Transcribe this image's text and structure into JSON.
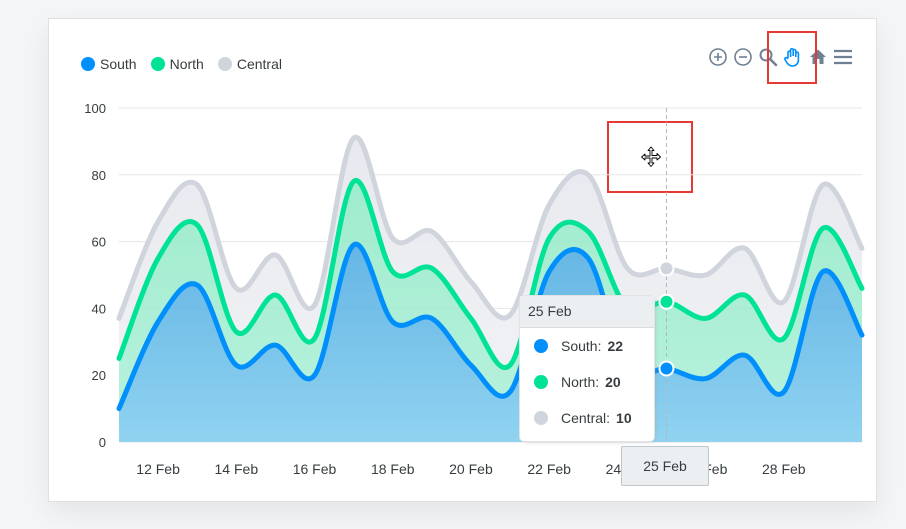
{
  "colors": {
    "south": "#008ffb",
    "north": "#00e396",
    "central": "#d0d4dc",
    "grid": "#e6e6e6",
    "axis_text": "#373d3f"
  },
  "legend": [
    {
      "name": "South",
      "color": "#008ffb"
    },
    {
      "name": "North",
      "color": "#00e396"
    },
    {
      "name": "Central",
      "color": "#d0d4dc"
    }
  ],
  "toolbar": {
    "icons": [
      "zoom-in-icon",
      "zoom-out-icon",
      "zoom-select-icon",
      "pan-hand-icon",
      "reset-home-icon",
      "menu-icon"
    ]
  },
  "chart_data": {
    "type": "area",
    "stacked": true,
    "x": [
      "11 Feb",
      "12 Feb",
      "13 Feb",
      "14 Feb",
      "15 Feb",
      "16 Feb",
      "17 Feb",
      "18 Feb",
      "19 Feb",
      "20 Feb",
      "21 Feb",
      "22 Feb",
      "23 Feb",
      "24 Feb",
      "25 Feb",
      "26 Feb",
      "27 Feb",
      "28 Feb",
      "29 Feb",
      "1 Mar"
    ],
    "xticks": [
      "12 Feb",
      "14 Feb",
      "16 Feb",
      "18 Feb",
      "20 Feb",
      "22 Feb",
      "24 Feb",
      "26 Feb",
      "28 Feb"
    ],
    "series": [
      {
        "name": "South",
        "values": [
          10,
          36,
          47,
          23,
          29,
          20,
          59,
          36,
          37,
          23,
          15,
          51,
          55,
          22,
          22,
          19,
          26,
          15,
          51,
          32
        ]
      },
      {
        "name": "North",
        "values": [
          15,
          19,
          18,
          10,
          15,
          11,
          19,
          15,
          15,
          14,
          8,
          10,
          8,
          18,
          20,
          18,
          18,
          16,
          13,
          14
        ]
      },
      {
        "name": "Central",
        "values": [
          12,
          11,
          12,
          13,
          12,
          10,
          13,
          10,
          11,
          11,
          15,
          10,
          17,
          12,
          10,
          13,
          14,
          11,
          13,
          12
        ]
      }
    ],
    "ylim": [
      0,
      100
    ],
    "yticks": [
      0,
      20,
      40,
      60,
      80,
      100
    ],
    "grid": true,
    "legend_position": "top-left",
    "tooltip": {
      "title": "25 Feb",
      "rows": [
        {
          "label": "South:",
          "value": "22"
        },
        {
          "label": "North:",
          "value": "20"
        },
        {
          "label": "Central:",
          "value": "10"
        }
      ]
    },
    "x_crosshair_label": "25 Feb"
  }
}
